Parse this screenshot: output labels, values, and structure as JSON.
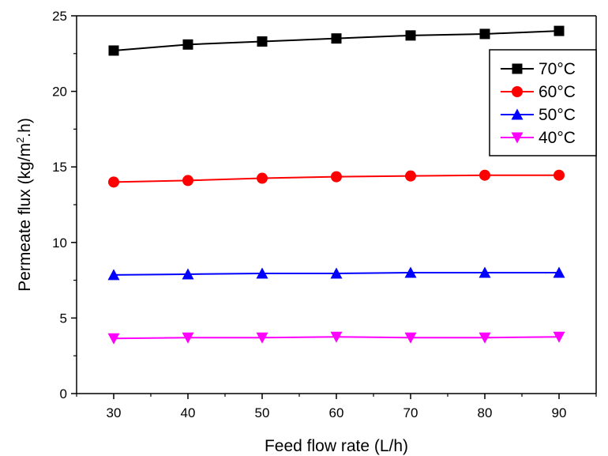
{
  "chart_data": {
    "type": "line",
    "title": "",
    "xlabel": "Feed flow rate (L/h)",
    "ylabel": "Permeate flux (kg/m",
    "ylabel_sup": "2",
    "ylabel_tail": ".h)",
    "x": [
      30,
      40,
      50,
      60,
      70,
      80,
      90
    ],
    "xlim": [
      25,
      95
    ],
    "ylim": [
      0,
      25
    ],
    "xticks": [
      30,
      40,
      50,
      60,
      70,
      80,
      90
    ],
    "yticks": [
      0,
      5,
      10,
      15,
      20,
      25
    ],
    "grid": false,
    "legend_position": "top-right",
    "series": [
      {
        "name": "70°C",
        "color": "#000000",
        "marker": "square",
        "values": [
          22.7,
          23.1,
          23.3,
          23.5,
          23.7,
          23.8,
          24.0
        ]
      },
      {
        "name": "60°C",
        "color": "#ff0000",
        "marker": "circle",
        "values": [
          14.0,
          14.1,
          14.25,
          14.35,
          14.4,
          14.45,
          14.45
        ]
      },
      {
        "name": "50°C",
        "color": "#0000ff",
        "marker": "triangle-up",
        "values": [
          7.85,
          7.9,
          7.95,
          7.95,
          8.0,
          8.0,
          8.0
        ]
      },
      {
        "name": "40°C",
        "color": "#ff00ff",
        "marker": "triangle-down",
        "values": [
          3.65,
          3.7,
          3.7,
          3.75,
          3.7,
          3.7,
          3.75
        ]
      }
    ]
  }
}
